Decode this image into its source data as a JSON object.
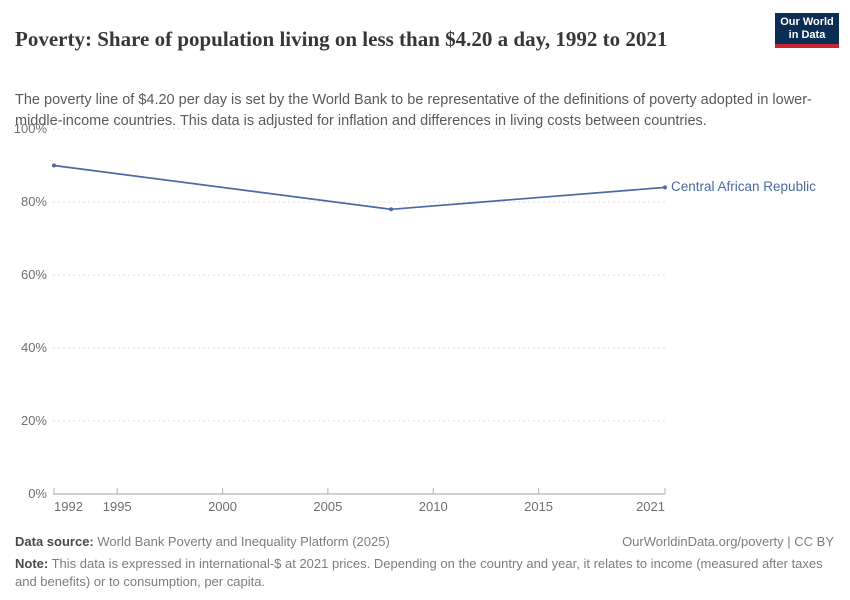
{
  "header": {
    "title": "Poverty: Share of population living on less than $4.20 a day, 1992 to 2021",
    "subtitle": "The poverty line of $4.20 per day is set by the World Bank to be representative of the definitions of poverty adopted in lower-middle-income countries. This data is adjusted for inflation and differences in living costs between countries.",
    "logo": {
      "line1": "Our World",
      "line2": "in Data",
      "bg_color": "#0d2e54",
      "accent_color": "#c7252d"
    }
  },
  "chart_data": {
    "type": "line",
    "title": "Poverty: Share of population living on less than $4.20 a day, 1992 to 2021",
    "x": [
      1992,
      2008,
      2021
    ],
    "series": [
      {
        "name": "Central African Republic",
        "color": "#4b69a5",
        "values": [
          90,
          78,
          84
        ]
      }
    ],
    "xlabel": "",
    "ylabel": "",
    "xlim": [
      1992,
      2021
    ],
    "ylim": [
      0,
      100
    ],
    "yticks": [
      0,
      20,
      40,
      60,
      80,
      100
    ],
    "ytick_labels": [
      "0%",
      "20%",
      "40%",
      "60%",
      "80%",
      "100%"
    ],
    "xticks": [
      1992,
      1995,
      2000,
      2005,
      2010,
      2015,
      2021
    ],
    "xtick_labels": [
      "1992",
      "1995",
      "2000",
      "2005",
      "2010",
      "2015",
      "2021"
    ],
    "grid": "horizontal-dashed",
    "legend": "line-end-label",
    "end_label": "Central African Republic"
  },
  "footer": {
    "data_source_label": "Data source:",
    "data_source_value": " World Bank Poverty and Inequality Platform (2025)",
    "attribution": "OurWorldinData.org/poverty | CC BY",
    "note_label": "Note:",
    "note_value": " This data is expressed in international-$ at 2021 prices. Depending on the country and year, it relates to income (measured after taxes and benefits) or to consumption, per capita."
  }
}
